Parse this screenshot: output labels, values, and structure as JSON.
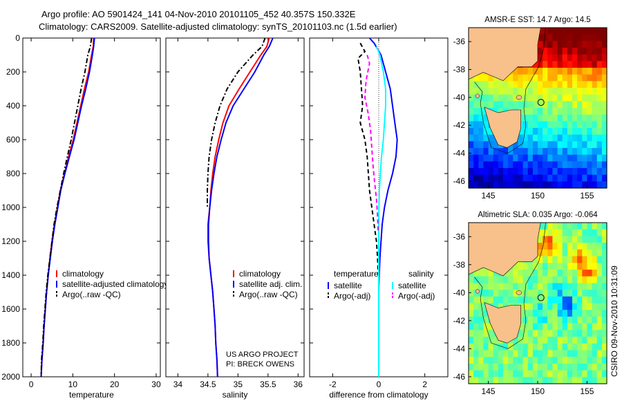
{
  "header": {
    "line1": "Argo profile: AO 5901424_141 04-Nov-2010 20101105_452 40.357S 150.332E",
    "line2": "Climatology: CARS2009. Satellite-adjusted climatology: synTS_20101103.nc (1.5d earlier)"
  },
  "footer_left": "US ARGO PROJECT",
  "footer_right": "PI: BRECK OWENS",
  "side_label": "CSIRO 09-Nov-2010 10:31:09",
  "colors": {
    "climatology": "#ff0000",
    "satellite": "#0000ff",
    "argo": "#000000",
    "salinity_sat": "#00ffff",
    "salinity_argo": "#ff00ff",
    "land": "#f8c08a"
  },
  "chart_data": [
    {
      "type": "line",
      "xlabel": "temperature",
      "ylim": [
        2000,
        0
      ],
      "xlim": [
        -2,
        31
      ],
      "xticks": [
        0,
        10,
        20,
        30
      ],
      "yticks": [
        0,
        200,
        400,
        600,
        800,
        1000,
        1200,
        1400,
        1600,
        1800,
        2000
      ],
      "legend": [
        "climatology",
        "satellite-adjusted climatology",
        "Argo(..raw -QC)"
      ],
      "series": [
        {
          "name": "climatology",
          "color": "#ff0000",
          "dash": "solid",
          "points": [
            [
              15.0,
              0
            ],
            [
              14.9,
              50
            ],
            [
              14.5,
              100
            ],
            [
              13.8,
              200
            ],
            [
              12.8,
              300
            ],
            [
              11.9,
              400
            ],
            [
              11.0,
              500
            ],
            [
              10.1,
              600
            ],
            [
              9.0,
              700
            ],
            [
              8.0,
              800
            ],
            [
              7.0,
              900
            ],
            [
              6.3,
              1000
            ],
            [
              5.6,
              1100
            ],
            [
              5.0,
              1200
            ],
            [
              4.5,
              1300
            ],
            [
              4.1,
              1400
            ],
            [
              3.7,
              1500
            ],
            [
              3.4,
              1600
            ],
            [
              3.1,
              1700
            ],
            [
              2.9,
              1800
            ],
            [
              2.6,
              1900
            ],
            [
              2.4,
              2000
            ]
          ]
        },
        {
          "name": "satellite-adjusted climatology",
          "color": "#0000ff",
          "dash": "solid",
          "points": [
            [
              15.2,
              0
            ],
            [
              15.0,
              50
            ],
            [
              14.7,
              100
            ],
            [
              14.0,
              200
            ],
            [
              13.1,
              300
            ],
            [
              12.1,
              400
            ],
            [
              11.2,
              500
            ],
            [
              10.3,
              600
            ],
            [
              9.2,
              700
            ],
            [
              8.1,
              800
            ],
            [
              7.1,
              900
            ],
            [
              6.4,
              1000
            ],
            [
              5.7,
              1100
            ],
            [
              5.1,
              1200
            ],
            [
              4.6,
              1300
            ],
            [
              4.1,
              1400
            ],
            [
              3.7,
              1500
            ],
            [
              3.4,
              1600
            ],
            [
              3.1,
              1700
            ],
            [
              2.9,
              1800
            ],
            [
              2.6,
              1900
            ],
            [
              2.4,
              2000
            ]
          ]
        },
        {
          "name": "Argo(..raw -QC)",
          "color": "#000000",
          "dash": "dashdot",
          "points": [
            [
              14.5,
              0
            ],
            [
              14.2,
              50
            ],
            [
              13.6,
              100
            ],
            [
              12.9,
              200
            ],
            [
              12.0,
              300
            ],
            [
              11.2,
              400
            ],
            [
              10.4,
              500
            ],
            [
              9.6,
              600
            ],
            [
              8.7,
              700
            ],
            [
              7.8,
              800
            ],
            [
              7.0,
              900
            ],
            [
              6.2,
              1000
            ],
            [
              5.5,
              1100
            ],
            [
              5.0,
              1200
            ],
            [
              4.5,
              1300
            ],
            [
              4.0,
              1400
            ],
            [
              3.6,
              1500
            ],
            [
              3.3,
              1600
            ],
            [
              3.0,
              1700
            ],
            [
              2.8,
              1800
            ],
            [
              2.5,
              1900
            ],
            [
              2.4,
              2000
            ]
          ]
        }
      ]
    },
    {
      "type": "line",
      "xlabel": "salinity",
      "ylim": [
        2000,
        0
      ],
      "xlim": [
        33.8,
        36.1
      ],
      "xticks": [
        34,
        34.5,
        35,
        35.5,
        36
      ],
      "legend": [
        "climatology",
        "satellite adj. clim.",
        "Argo(..raw -QC)"
      ],
      "series": [
        {
          "name": "climatology",
          "color": "#ff0000",
          "dash": "solid",
          "points": [
            [
              35.52,
              0
            ],
            [
              35.48,
              50
            ],
            [
              35.38,
              100
            ],
            [
              35.2,
              200
            ],
            [
              35.02,
              300
            ],
            [
              34.85,
              400
            ],
            [
              34.75,
              500
            ],
            [
              34.68,
              600
            ],
            [
              34.62,
              700
            ],
            [
              34.58,
              800
            ],
            [
              34.55,
              900
            ],
            [
              34.53,
              1000
            ],
            [
              34.5,
              1100
            ],
            [
              34.5,
              1200
            ],
            [
              34.52,
              1300
            ],
            [
              34.55,
              1400
            ],
            [
              34.58,
              1500
            ],
            [
              34.6,
              1600
            ],
            [
              34.62,
              1700
            ],
            [
              34.63,
              1800
            ],
            [
              34.65,
              1900
            ],
            [
              34.66,
              2000
            ]
          ]
        },
        {
          "name": "satellite adj. clim.",
          "color": "#0000ff",
          "dash": "solid",
          "points": [
            [
              35.58,
              0
            ],
            [
              35.52,
              50
            ],
            [
              35.43,
              100
            ],
            [
              35.28,
              200
            ],
            [
              35.1,
              300
            ],
            [
              34.92,
              400
            ],
            [
              34.8,
              500
            ],
            [
              34.72,
              600
            ],
            [
              34.65,
              700
            ],
            [
              34.6,
              800
            ],
            [
              34.56,
              900
            ],
            [
              34.53,
              1000
            ],
            [
              34.51,
              1100
            ],
            [
              34.51,
              1200
            ],
            [
              34.52,
              1300
            ],
            [
              34.55,
              1400
            ],
            [
              34.58,
              1500
            ],
            [
              34.6,
              1600
            ],
            [
              34.62,
              1700
            ],
            [
              34.63,
              1800
            ],
            [
              34.65,
              1900
            ],
            [
              34.66,
              2000
            ]
          ]
        },
        {
          "name": "Argo(..raw -QC)",
          "color": "#000000",
          "dash": "dashdot",
          "points": [
            [
              35.45,
              0
            ],
            [
              35.4,
              50
            ],
            [
              35.25,
              100
            ],
            [
              35.0,
              200
            ],
            [
              34.82,
              300
            ],
            [
              34.7,
              400
            ],
            [
              34.62,
              500
            ],
            [
              34.56,
              600
            ],
            [
              34.52,
              700
            ],
            [
              34.5,
              800
            ],
            [
              34.49,
              900
            ],
            [
              34.49,
              1000
            ]
          ]
        }
      ]
    },
    {
      "type": "line",
      "xlabel": "difference from climatology",
      "ylim": [
        2000,
        0
      ],
      "xlim": [
        -3,
        3
      ],
      "xticks": [
        -2,
        0,
        2
      ],
      "legend": [
        "temperature",
        "satellite",
        "Argo(-adj)",
        "salinity",
        "satellite",
        "Argo(-adj)"
      ],
      "series": [
        {
          "name": "satellite",
          "color": "#0000ff",
          "dash": "solid",
          "points": [
            [
              -0.4,
              0
            ],
            [
              -0.2,
              30
            ],
            [
              0.1,
              100
            ],
            [
              0.3,
              200
            ],
            [
              0.5,
              300
            ],
            [
              0.6,
              400
            ],
            [
              0.7,
              500
            ],
            [
              0.8,
              600
            ],
            [
              0.75,
              700
            ],
            [
              0.6,
              800
            ],
            [
              0.4,
              900
            ],
            [
              0.25,
              1000
            ],
            [
              0.15,
              1100
            ],
            [
              0.1,
              1200
            ],
            [
              0.05,
              1300
            ],
            [
              0.02,
              1400
            ],
            [
              0,
              1500
            ],
            [
              0,
              2000
            ]
          ]
        },
        {
          "name": "Argo(-adj)",
          "color": "#000000",
          "dash": "dashed",
          "points": [
            [
              -0.8,
              30
            ],
            [
              -0.6,
              80
            ],
            [
              -0.9,
              120
            ],
            [
              -0.8,
              200
            ],
            [
              -0.75,
              300
            ],
            [
              -0.7,
              400
            ],
            [
              -0.8,
              500
            ],
            [
              -0.6,
              600
            ],
            [
              -0.5,
              700
            ],
            [
              -0.45,
              800
            ],
            [
              -0.4,
              900
            ],
            [
              -0.3,
              1000
            ],
            [
              -0.2,
              1100
            ],
            [
              -0.1,
              1200
            ],
            [
              -0.05,
              1300
            ],
            [
              -0.02,
              1400
            ]
          ]
        },
        {
          "name": "satellite",
          "color": "#00ffff",
          "dash": "solid",
          "points": [
            [
              -0.1,
              50
            ],
            [
              0.05,
              100
            ],
            [
              0.2,
              200
            ],
            [
              0.3,
              300
            ],
            [
              0.3,
              400
            ],
            [
              0.25,
              500
            ],
            [
              0.2,
              600
            ],
            [
              0.12,
              700
            ],
            [
              0.07,
              800
            ],
            [
              0.03,
              900
            ],
            [
              0.01,
              1000
            ],
            [
              0,
              1100
            ],
            [
              0,
              2000
            ]
          ]
        },
        {
          "name": "Argo(-adj)",
          "color": "#ff00ff",
          "dash": "dashed",
          "points": [
            [
              -0.5,
              100
            ],
            [
              -0.4,
              150
            ],
            [
              -0.55,
              250
            ],
            [
              -0.6,
              350
            ],
            [
              -0.45,
              450
            ],
            [
              -0.35,
              550
            ],
            [
              -0.3,
              650
            ],
            [
              -0.25,
              750
            ],
            [
              -0.18,
              850
            ],
            [
              -0.1,
              950
            ],
            [
              -0.05,
              1050
            ],
            [
              -0.02,
              1150
            ]
          ]
        }
      ]
    }
  ],
  "maps": [
    {
      "title": "AMSR-E SST: 14.7 Argo: 14.5",
      "xticks": [
        "145",
        "150",
        "155"
      ],
      "yticks": [
        "-36",
        "-38",
        "-40",
        "-42",
        "-44",
        "-46"
      ],
      "kind": "sst"
    },
    {
      "title": "Altimetric SLA: 0.035 Argo: -0.064",
      "xticks": [
        "145",
        "150",
        "155"
      ],
      "yticks": [
        "-36",
        "-38",
        "-40",
        "-42",
        "-44",
        "-46"
      ],
      "kind": "sla"
    }
  ]
}
